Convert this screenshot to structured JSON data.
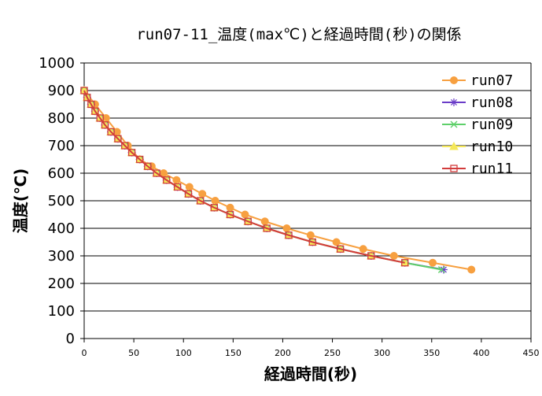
{
  "chart_data": {
    "type": "line",
    "title": "run07-11_温度(max℃)と経過時間(秒)の関係",
    "xlabel": "経過時間(秒)",
    "ylabel": "温度(℃)",
    "xlim": [
      0,
      450
    ],
    "ylim": [
      0,
      1000
    ],
    "xticks": [
      0,
      50,
      100,
      150,
      200,
      250,
      300,
      350,
      400,
      450
    ],
    "yticks": [
      0,
      100,
      200,
      300,
      400,
      500,
      600,
      700,
      800,
      900,
      1000
    ],
    "grid": "horizontal",
    "legend_position": "top-right",
    "series": [
      {
        "name": "run07",
        "color": "#f7a040",
        "marker": "circle",
        "x": [
          0,
          11,
          22,
          33,
          44,
          56,
          68,
          80,
          93,
          106,
          119,
          132,
          147,
          162,
          182,
          204,
          228,
          254,
          281,
          312,
          351,
          390
        ],
        "y": [
          900,
          850,
          800,
          750,
          700,
          650,
          625,
          600,
          575,
          550,
          525,
          500,
          475,
          450,
          425,
          400,
          375,
          350,
          325,
          300,
          275,
          250
        ]
      },
      {
        "name": "run08",
        "color": "#6a3cc8",
        "marker": "asterisk",
        "x": [
          0,
          3,
          7,
          11,
          16,
          21,
          27,
          34,
          41,
          48,
          56,
          64,
          73,
          83,
          94,
          105,
          117,
          131,
          147,
          165,
          184,
          206,
          230,
          258,
          289,
          323,
          362
        ],
        "y": [
          900,
          875,
          850,
          825,
          800,
          775,
          750,
          725,
          700,
          675,
          650,
          625,
          600,
          575,
          550,
          525,
          500,
          475,
          450,
          425,
          400,
          375,
          350,
          325,
          300,
          275,
          250
        ]
      },
      {
        "name": "run09",
        "color": "#5ed06a",
        "marker": "x",
        "x": [
          0,
          3,
          7,
          11,
          16,
          21,
          27,
          34,
          41,
          48,
          56,
          64,
          73,
          83,
          94,
          105,
          117,
          131,
          147,
          165,
          184,
          206,
          230,
          258,
          289,
          323,
          360
        ],
        "y": [
          900,
          875,
          850,
          825,
          800,
          775,
          750,
          725,
          700,
          675,
          650,
          625,
          600,
          575,
          550,
          525,
          500,
          475,
          450,
          425,
          400,
          375,
          350,
          325,
          300,
          275,
          250
        ]
      },
      {
        "name": "run10",
        "color": "#f5e85a",
        "marker": "triangle",
        "x": [
          0,
          3,
          7,
          11,
          16,
          21,
          27,
          34,
          41,
          48,
          56,
          64,
          73,
          83,
          94,
          105,
          117,
          131,
          147,
          165,
          184,
          206,
          230,
          258,
          289,
          323
        ],
        "y": [
          900,
          875,
          850,
          825,
          800,
          775,
          750,
          725,
          700,
          675,
          650,
          625,
          600,
          575,
          550,
          525,
          500,
          475,
          450,
          425,
          400,
          375,
          350,
          325,
          300,
          275
        ]
      },
      {
        "name": "run11",
        "color": "#d23c3c",
        "marker": "square",
        "x": [
          0,
          3,
          7,
          11,
          16,
          21,
          27,
          34,
          41,
          48,
          56,
          64,
          73,
          83,
          94,
          105,
          117,
          131,
          147,
          165,
          184,
          206,
          230,
          258,
          289,
          323
        ],
        "y": [
          900,
          875,
          850,
          825,
          800,
          775,
          750,
          725,
          700,
          675,
          650,
          625,
          600,
          575,
          550,
          525,
          500,
          475,
          450,
          425,
          400,
          375,
          350,
          325,
          300,
          275
        ]
      }
    ]
  }
}
